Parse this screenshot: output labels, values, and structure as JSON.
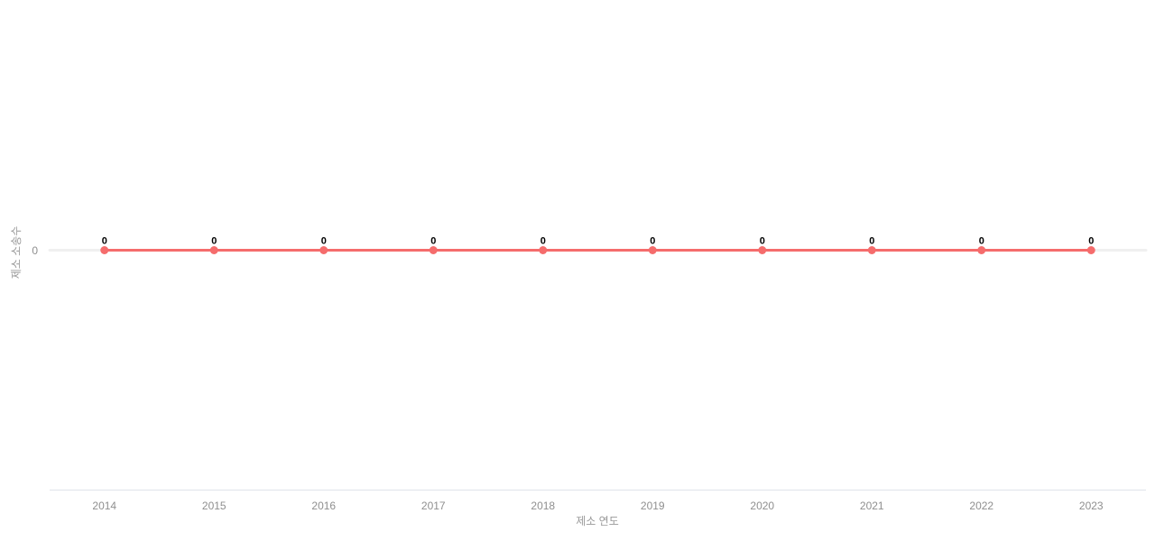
{
  "chart_data": {
    "type": "line",
    "title": "",
    "categories": [
      "2014",
      "2015",
      "2016",
      "2017",
      "2018",
      "2019",
      "2020",
      "2021",
      "2022",
      "2023"
    ],
    "series": [
      {
        "name": "제소 소송수",
        "values": [
          0,
          0,
          0,
          0,
          0,
          0,
          0,
          0,
          0,
          0
        ],
        "point_labels": [
          "0",
          "0",
          "0",
          "0",
          "0",
          "0",
          "0",
          "0",
          "0",
          "0"
        ]
      }
    ],
    "xlabel": "제소 연도",
    "ylabel": "제소 소송수",
    "y_tick_labels": [
      "0"
    ],
    "legend_position": "none",
    "grid": "single horizontal zero gridline",
    "colors": {
      "line": "#f56c6c",
      "marker": "#f56c6c",
      "value_label": "#000000",
      "tick_label": "#8f8f8f",
      "axis_title": "#999999",
      "gridline": "#f0f0f0",
      "axis_line": "#dfe4ea",
      "background": "#ffffff"
    }
  }
}
